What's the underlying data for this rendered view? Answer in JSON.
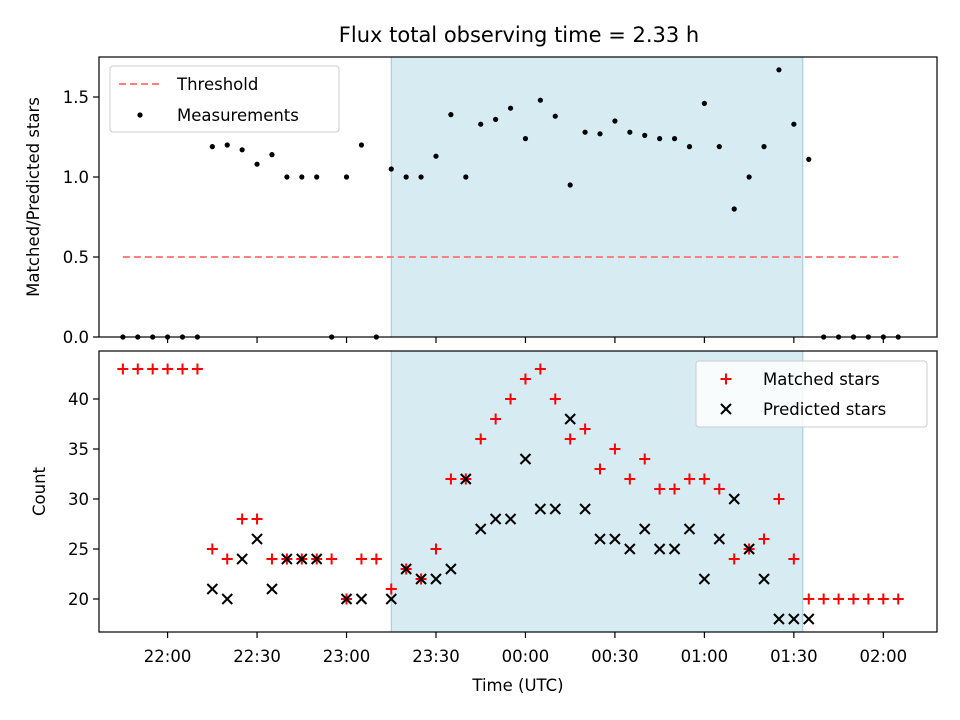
{
  "chart_data": [
    {
      "type": "scatter",
      "title": "Flux total observing time = 2.33 h",
      "ylabel": "Matched/Predicted stars",
      "xlim": [
        "21:37",
        "02:18"
      ],
      "ylim": [
        0,
        1.75
      ],
      "yticks": [
        "0.0",
        "0.5",
        "1.0",
        "1.5"
      ],
      "highlight_span": [
        "23:15",
        "01:33"
      ],
      "legend": {
        "location": "upper-left",
        "entries": [
          "Threshold",
          "Measurements"
        ]
      },
      "threshold": {
        "name": "Threshold",
        "y": 0.5,
        "x_range": [
          "21:45",
          "02:05"
        ],
        "color": "#ff7f7f"
      },
      "series": [
        {
          "name": "Measurements",
          "marker": "dot",
          "color": "#000000",
          "x": [
            "21:45",
            "21:50",
            "21:55",
            "22:00",
            "22:05",
            "22:10",
            "22:15",
            "22:20",
            "22:25",
            "22:30",
            "22:35",
            "22:40",
            "22:45",
            "22:50",
            "22:55",
            "23:00",
            "23:05",
            "23:10",
            "23:15",
            "23:20",
            "23:25",
            "23:30",
            "23:35",
            "23:40",
            "23:45",
            "23:50",
            "23:55",
            "00:00",
            "00:05",
            "00:10",
            "00:15",
            "00:20",
            "00:25",
            "00:30",
            "00:35",
            "00:40",
            "00:45",
            "00:50",
            "00:55",
            "01:00",
            "01:05",
            "01:10",
            "01:15",
            "01:20",
            "01:25",
            "01:30",
            "01:35",
            "01:40",
            "01:45",
            "01:50",
            "01:55",
            "02:00",
            "02:05"
          ],
          "y": [
            0,
            0,
            0,
            0,
            0,
            0,
            1.19,
            1.2,
            1.17,
            1.08,
            1.14,
            1.0,
            1.0,
            1.0,
            0,
            1.0,
            1.2,
            0,
            1.05,
            1.0,
            1.0,
            1.13,
            1.39,
            1.0,
            1.33,
            1.36,
            1.43,
            1.24,
            1.48,
            1.38,
            0.95,
            1.28,
            1.27,
            1.35,
            1.28,
            1.26,
            1.24,
            1.24,
            1.19,
            1.46,
            1.19,
            0.8,
            1.0,
            1.19,
            1.67,
            1.33,
            1.11,
            0,
            0,
            0,
            0,
            0,
            0
          ]
        }
      ]
    },
    {
      "type": "scatter",
      "xlabel": "Time (UTC)",
      "ylabel": "Count",
      "xlim": [
        "21:37",
        "02:18"
      ],
      "xticks": [
        "22:00",
        "22:30",
        "23:00",
        "23:30",
        "00:00",
        "00:30",
        "01:00",
        "01:30",
        "02:00"
      ],
      "ylim": [
        16.7,
        44.8
      ],
      "yticks": [
        "20",
        "25",
        "30",
        "35",
        "40"
      ],
      "highlight_span": [
        "23:15",
        "01:33"
      ],
      "legend": {
        "location": "upper-right",
        "entries": [
          "Matched stars",
          "Predicted stars"
        ]
      },
      "series": [
        {
          "name": "Matched stars",
          "marker": "plus",
          "color": "#ff0000",
          "x": [
            "21:45",
            "21:50",
            "21:55",
            "22:00",
            "22:05",
            "22:10",
            "22:15",
            "22:20",
            "22:25",
            "22:30",
            "22:35",
            "22:40",
            "22:45",
            "22:50",
            "22:55",
            "23:00",
            "23:05",
            "23:10",
            "23:15",
            "23:20",
            "23:25",
            "23:30",
            "23:35",
            "23:40",
            "23:45",
            "23:50",
            "23:55",
            "00:00",
            "00:05",
            "00:10",
            "00:15",
            "00:20",
            "00:25",
            "00:30",
            "00:35",
            "00:40",
            "00:45",
            "00:50",
            "00:55",
            "01:00",
            "01:05",
            "01:10",
            "01:15",
            "01:20",
            "01:25",
            "01:30",
            "01:35",
            "01:40",
            "01:45",
            "01:50",
            "01:55",
            "02:00",
            "02:05"
          ],
          "y": [
            43,
            43,
            43,
            43,
            43,
            43,
            25,
            24,
            28,
            28,
            24,
            24,
            24,
            24,
            24,
            20,
            24,
            24,
            21,
            23,
            22,
            25,
            32,
            32,
            36,
            38,
            40,
            42,
            43,
            40,
            36,
            37,
            33,
            35,
            32,
            34,
            31,
            31,
            32,
            32,
            31,
            24,
            25,
            26,
            30,
            24,
            20,
            20,
            20,
            20,
            20,
            20,
            20
          ]
        },
        {
          "name": "Predicted stars",
          "marker": "x",
          "color": "#000000",
          "x": [
            "22:15",
            "22:20",
            "22:25",
            "22:30",
            "22:35",
            "22:40",
            "22:45",
            "22:50",
            "23:00",
            "23:05",
            "23:15",
            "23:20",
            "23:25",
            "23:30",
            "23:35",
            "23:40",
            "23:45",
            "23:50",
            "23:55",
            "00:00",
            "00:05",
            "00:10",
            "00:15",
            "00:20",
            "00:25",
            "00:30",
            "00:35",
            "00:40",
            "00:45",
            "00:50",
            "00:55",
            "01:00",
            "01:05",
            "01:10",
            "01:15",
            "01:20",
            "01:25",
            "01:30",
            "01:35"
          ],
          "y": [
            21,
            20,
            24,
            26,
            21,
            24,
            24,
            24,
            20,
            20,
            20,
            23,
            22,
            22,
            23,
            32,
            27,
            28,
            28,
            34,
            29,
            29,
            38,
            29,
            26,
            26,
            25,
            27,
            25,
            25,
            27,
            22,
            26,
            30,
            25,
            22,
            18,
            18,
            18
          ]
        }
      ]
    }
  ]
}
